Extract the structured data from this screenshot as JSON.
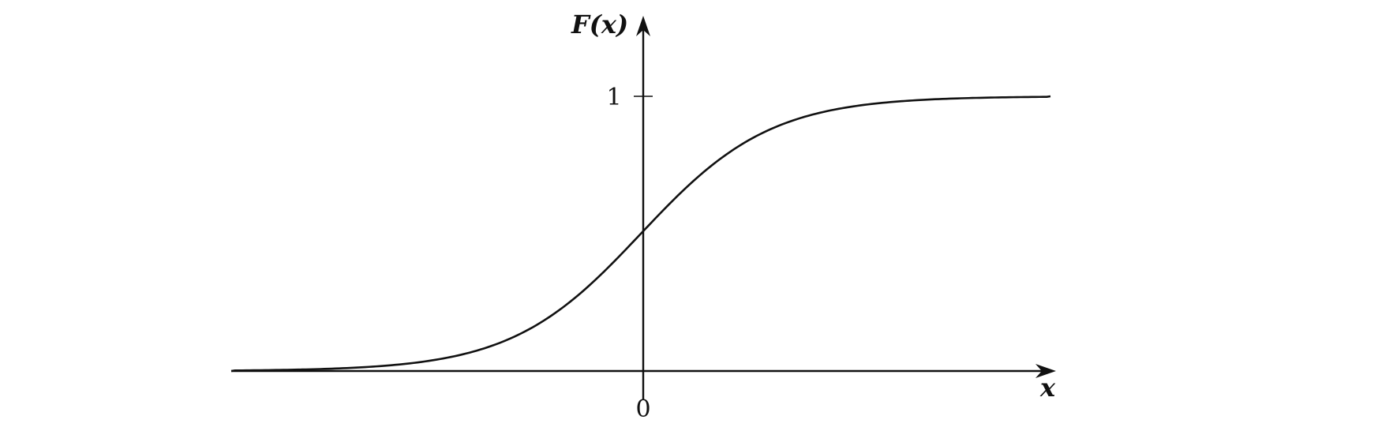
{
  "chart_data": {
    "type": "line",
    "title": "",
    "xlabel": "x",
    "ylabel": "F(x)",
    "x_tick_labels": [
      "0"
    ],
    "y_tick_labels": [
      "1"
    ],
    "ylim": [
      0,
      1
    ],
    "xlim": [
      -6,
      6
    ],
    "grid": false,
    "legend": "none",
    "series": [
      {
        "x": [
          -6,
          -5.5,
          -5,
          -4.5,
          -4,
          -3.5,
          -3,
          -2.5,
          -2,
          -1.5,
          -1,
          -0.5,
          0,
          0.5,
          1,
          1.5,
          2,
          2.5,
          3,
          3.5,
          4,
          4.5,
          5,
          5.5,
          6
        ],
        "y": [
          0.0,
          0.0,
          0.0,
          0.0,
          0.005,
          0.01,
          0.02,
          0.04,
          0.08,
          0.15,
          0.25,
          0.37,
          0.5,
          0.63,
          0.75,
          0.85,
          0.92,
          0.96,
          0.98,
          0.99,
          0.995,
          1.0,
          1.0,
          1.0,
          1.0
        ]
      }
    ],
    "color": "#111111"
  }
}
